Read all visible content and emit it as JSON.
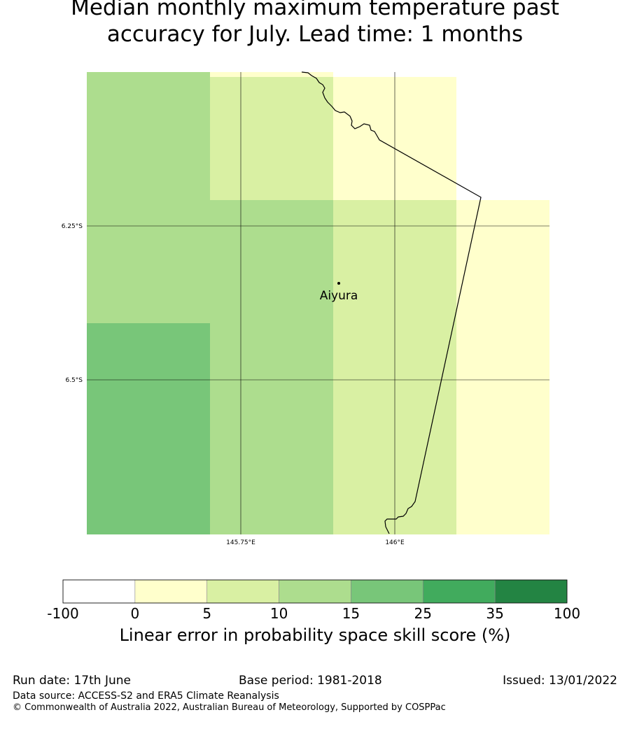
{
  "title": {
    "line1": "Median monthly maximum temperature past",
    "line2": "accuracy for July. Lead time: 1 months"
  },
  "map": {
    "gridlines": {
      "lat_labels": [
        "6.25°S",
        "6.5°S"
      ],
      "lon_labels": [
        "145.75°E",
        "146°E"
      ]
    },
    "place": {
      "name": "Aiyura"
    },
    "colors": {
      "class_0_5": "#ffffcc",
      "class_5_10": "#d9f0a3",
      "class_10_15": "#addd8e",
      "class_15_25": "#78c679",
      "class_25_35": "#41ab5d",
      "class_35_100": "#238443",
      "class_neg": "#ffffff"
    }
  },
  "colorbar": {
    "ticks": [
      "-100",
      "0",
      "5",
      "10",
      "15",
      "25",
      "35",
      "100"
    ],
    "colors": [
      "#ffffff",
      "#ffffcc",
      "#d9f0a3",
      "#addd8e",
      "#78c679",
      "#41ab5d",
      "#238443"
    ],
    "label": "Linear error in probability space skill score (%)"
  },
  "footer": {
    "run_date": "Run date: 17th June",
    "base_period": "Base period: 1981-2018",
    "issued": "Issued: 13/01/2022",
    "data_source": "Data source: ACCESS-S2 and ERA5 Climate Reanalysis",
    "copyright": "© Commonwealth of Australia 2022, Australian Bureau of Meteorology, Supported by COSPPac"
  }
}
